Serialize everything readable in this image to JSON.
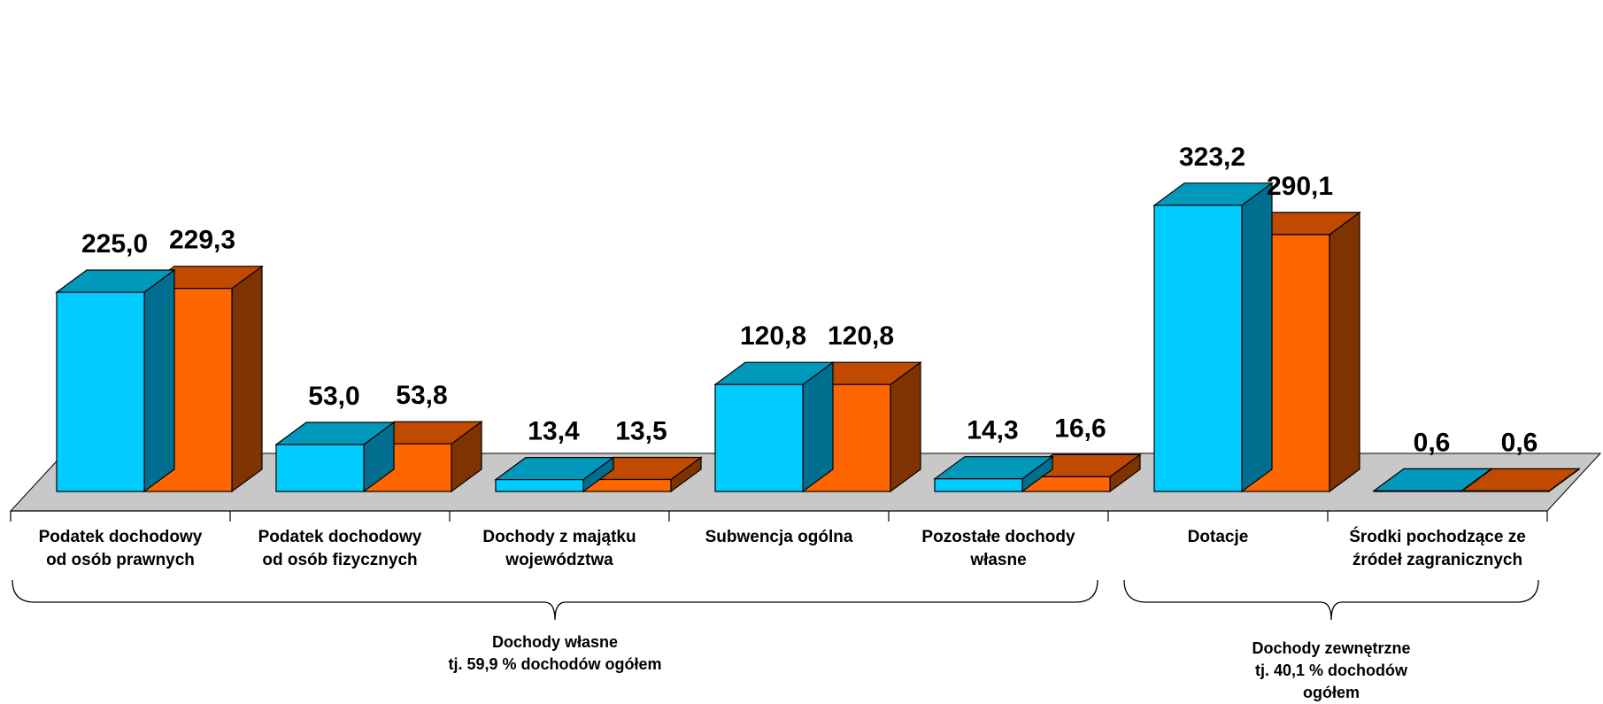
{
  "chart_data": {
    "type": "bar",
    "categories": [
      [
        "Podatek dochodowy",
        "od osób prawnych"
      ],
      [
        "Podatek dochodowy",
        "od osób fizycznych"
      ],
      [
        "Dochody z majątku",
        "województwa"
      ],
      [
        "Subwencja ogólna"
      ],
      [
        "Pozostałe dochody",
        "własne"
      ],
      [
        "Dotacje"
      ],
      [
        "Środki pochodzące ze",
        "źródeł zagranicznych"
      ]
    ],
    "series": [
      {
        "values": [
          225.0,
          53.0,
          13.4,
          120.8,
          14.3,
          323.2,
          0.6
        ],
        "labels": [
          "225,0",
          "53,0",
          "13,4",
          "120,8",
          "14,3",
          "323,2",
          "0,6"
        ]
      },
      {
        "values": [
          229.3,
          53.8,
          13.5,
          120.8,
          16.6,
          290.1,
          0.6
        ],
        "labels": [
          "229,3",
          "53,8",
          "13,5",
          "120,8",
          "16,6",
          "290,1",
          "0,6"
        ]
      }
    ],
    "groups": [
      {
        "lines": [
          "Dochody własne",
          "tj. 59,9 % dochodów ogółem"
        ],
        "from": 0,
        "to": 4
      },
      {
        "lines": [
          "Dochody zewnętrzne",
          "tj. 40,1 % dochodów",
          "ogółem"
        ],
        "from": 5,
        "to": 6
      }
    ],
    "ylim": [
      0,
      340
    ],
    "grid": false,
    "colors": {
      "series1_front": "#00CCFF",
      "series1_top": "#0099BB",
      "series1_side": "#006F8F",
      "series2_front": "#FF6600",
      "series2_top": "#C04A00",
      "series2_side": "#7F3300",
      "floor": "#C8C8C8"
    }
  }
}
